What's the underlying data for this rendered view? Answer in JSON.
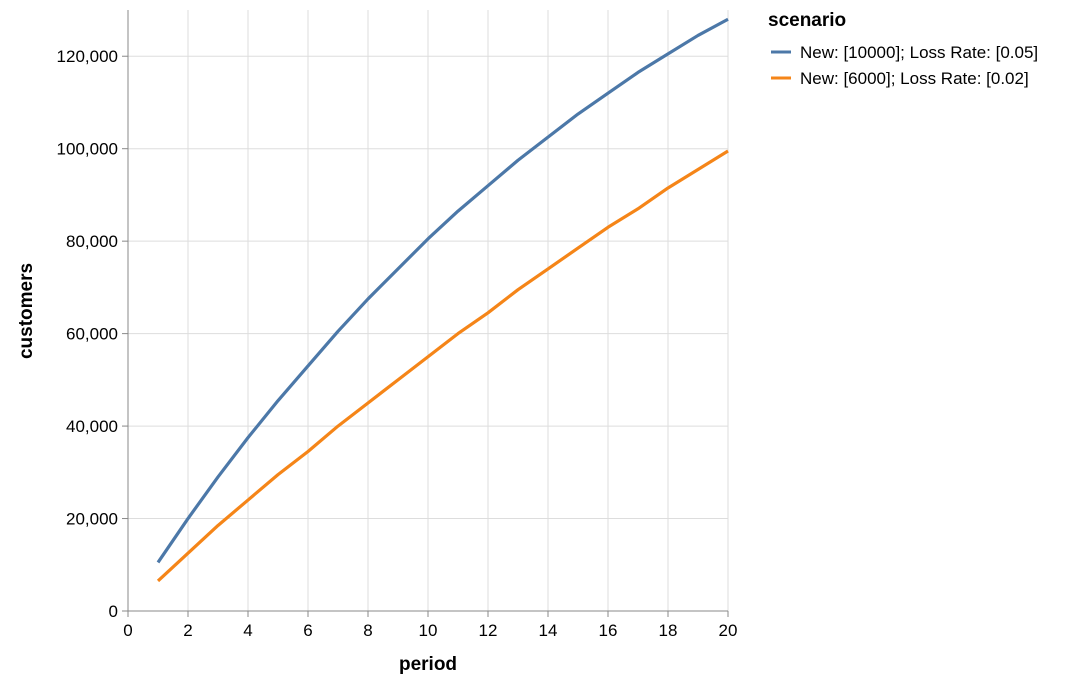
{
  "chart_data": {
    "type": "line",
    "xlabel": "period",
    "ylabel": "customers",
    "xlim": [
      0,
      20
    ],
    "ylim": [
      0,
      130000
    ],
    "x_ticks": [
      0,
      2,
      4,
      6,
      8,
      10,
      12,
      14,
      16,
      18,
      20
    ],
    "y_ticks": [
      0,
      20000,
      40000,
      60000,
      80000,
      100000,
      120000
    ],
    "grid": true,
    "legend": {
      "title": "scenario",
      "placement": "right"
    },
    "x": [
      1,
      2,
      3,
      4,
      5,
      6,
      7,
      8,
      9,
      10,
      11,
      12,
      13,
      14,
      15,
      16,
      17,
      18,
      19,
      20
    ],
    "series": [
      {
        "name": "New: [10000]; Loss Rate: [0.05]",
        "color": "#4c78a8",
        "values": [
          10500,
          20000,
          29000,
          37500,
          45500,
          53000,
          60500,
          67500,
          74000,
          80500,
          86500,
          92000,
          97500,
          102500,
          107500,
          112000,
          116500,
          120500,
          124500,
          128000
        ]
      },
      {
        "name": "New: [6000]; Loss Rate: [0.02]",
        "color": "#f58518",
        "values": [
          6500,
          12500,
          18500,
          24000,
          29500,
          34500,
          40000,
          45000,
          50000,
          55000,
          60000,
          64500,
          69500,
          74000,
          78500,
          83000,
          87000,
          91500,
          95500,
          99500
        ]
      }
    ]
  }
}
